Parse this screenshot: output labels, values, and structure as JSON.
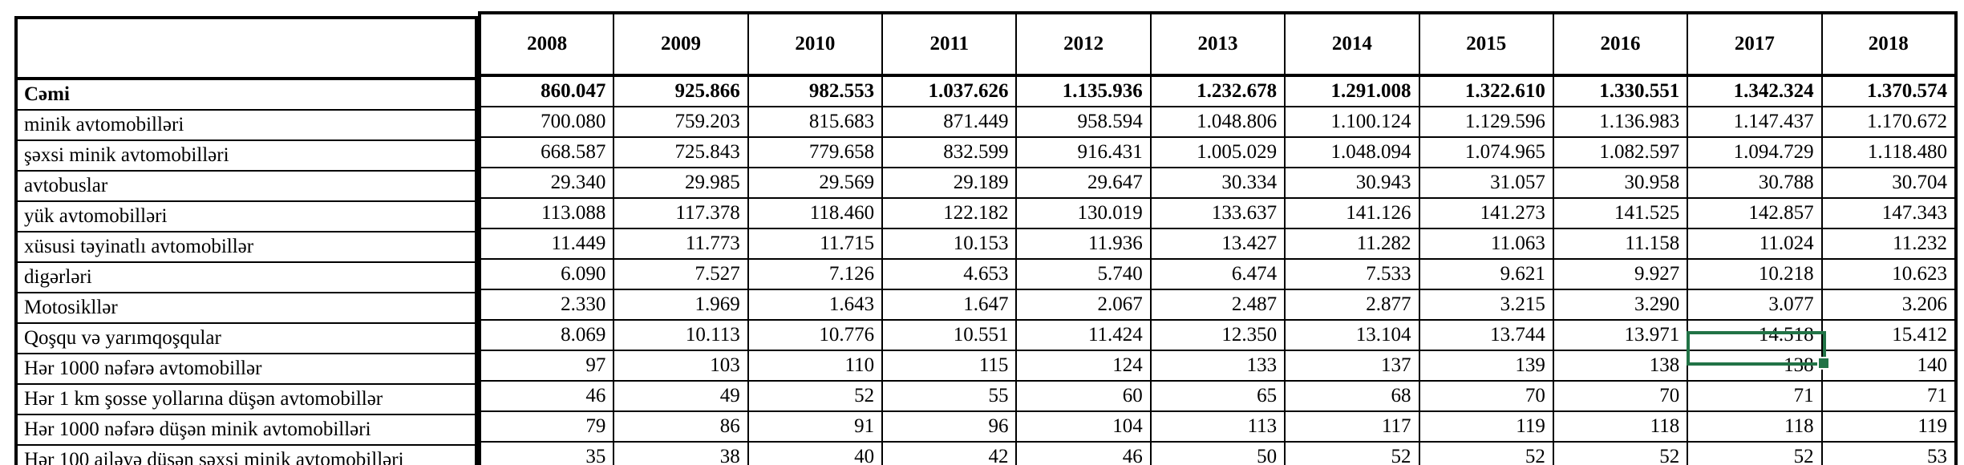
{
  "table": {
    "corner_label": "",
    "years": [
      "2008",
      "2009",
      "2010",
      "2011",
      "2012",
      "2013",
      "2014",
      "2015",
      "2016",
      "2017",
      "2018"
    ],
    "rows": [
      {
        "label": "Cəmi",
        "bold": true,
        "values": [
          "860.047",
          "925.866",
          "982.553",
          "1.037.626",
          "1.135.936",
          "1.232.678",
          "1.291.008",
          "1.322.610",
          "1.330.551",
          "1.342.324",
          "1.370.574"
        ]
      },
      {
        "label": "minik avtomobilləri",
        "bold": false,
        "values": [
          "700.080",
          "759.203",
          "815.683",
          "871.449",
          "958.594",
          "1.048.806",
          "1.100.124",
          "1.129.596",
          "1.136.983",
          "1.147.437",
          "1.170.672"
        ]
      },
      {
        "label": "şəxsi minik avtomobilləri",
        "bold": false,
        "values": [
          "668.587",
          "725.843",
          "779.658",
          "832.599",
          "916.431",
          "1.005.029",
          "1.048.094",
          "1.074.965",
          "1.082.597",
          "1.094.729",
          "1.118.480"
        ]
      },
      {
        "label": "avtobuslar",
        "bold": false,
        "values": [
          "29.340",
          "29.985",
          "29.569",
          "29.189",
          "29.647",
          "30.334",
          "30.943",
          "31.057",
          "30.958",
          "30.788",
          "30.704"
        ]
      },
      {
        "label": "yük avtomobilləri",
        "bold": false,
        "values": [
          "113.088",
          "117.378",
          "118.460",
          "122.182",
          "130.019",
          "133.637",
          "141.126",
          "141.273",
          "141.525",
          "142.857",
          "147.343"
        ]
      },
      {
        "label": "xüsusi təyinatlı avtomobillər",
        "bold": false,
        "values": [
          "11.449",
          "11.773",
          "11.715",
          "10.153",
          "11.936",
          "13.427",
          "11.282",
          "11.063",
          "11.158",
          "11.024",
          "11.232"
        ]
      },
      {
        "label": "digərləri",
        "bold": false,
        "values": [
          "6.090",
          "7.527",
          "7.126",
          "4.653",
          "5.740",
          "6.474",
          "7.533",
          "9.621",
          "9.927",
          "10.218",
          "10.623"
        ]
      },
      {
        "label": "Motosikllər",
        "bold": false,
        "values": [
          "2.330",
          "1.969",
          "1.643",
          "1.647",
          "2.067",
          "2.487",
          "2.877",
          "3.215",
          "3.290",
          "3.077",
          "3.206"
        ]
      },
      {
        "label": "Qoşqu və yarımqoşqular",
        "bold": false,
        "values": [
          "8.069",
          "10.113",
          "10.776",
          "10.551",
          "11.424",
          "12.350",
          "13.104",
          "13.744",
          "13.971",
          "14.518",
          "15.412"
        ]
      },
      {
        "label": "Hər 1000 nəfərə avtomobillər",
        "bold": false,
        "values": [
          "97",
          "103",
          "110",
          "115",
          "124",
          "133",
          "137",
          "139",
          "138",
          "138",
          "140"
        ]
      },
      {
        "label": "Hər 1 km şosse yollarına düşən avtomobillər",
        "bold": false,
        "values": [
          "46",
          "49",
          "52",
          "55",
          "60",
          "65",
          "68",
          "70",
          "70",
          "71",
          "71"
        ]
      },
      {
        "label": "Hər 1000 nəfərə düşən minik avtomobilləri",
        "bold": false,
        "values": [
          "79",
          "86",
          "91",
          "96",
          "104",
          "113",
          "117",
          "119",
          "118",
          "118",
          "119"
        ]
      },
      {
        "label": "Hər 100 ailəyə düşən şəxsi minik avtomobilləri",
        "bold": false,
        "values": [
          "35",
          "38",
          "40",
          "42",
          "46",
          "50",
          "52",
          "52",
          "52",
          "52",
          "53"
        ]
      }
    ]
  },
  "selection": {
    "year": "2017",
    "row_label": "Hər 1000 nəfərə avtomobillər",
    "value": "138",
    "row_index": 9,
    "col_index": 9,
    "accent_color": "#217346"
  }
}
